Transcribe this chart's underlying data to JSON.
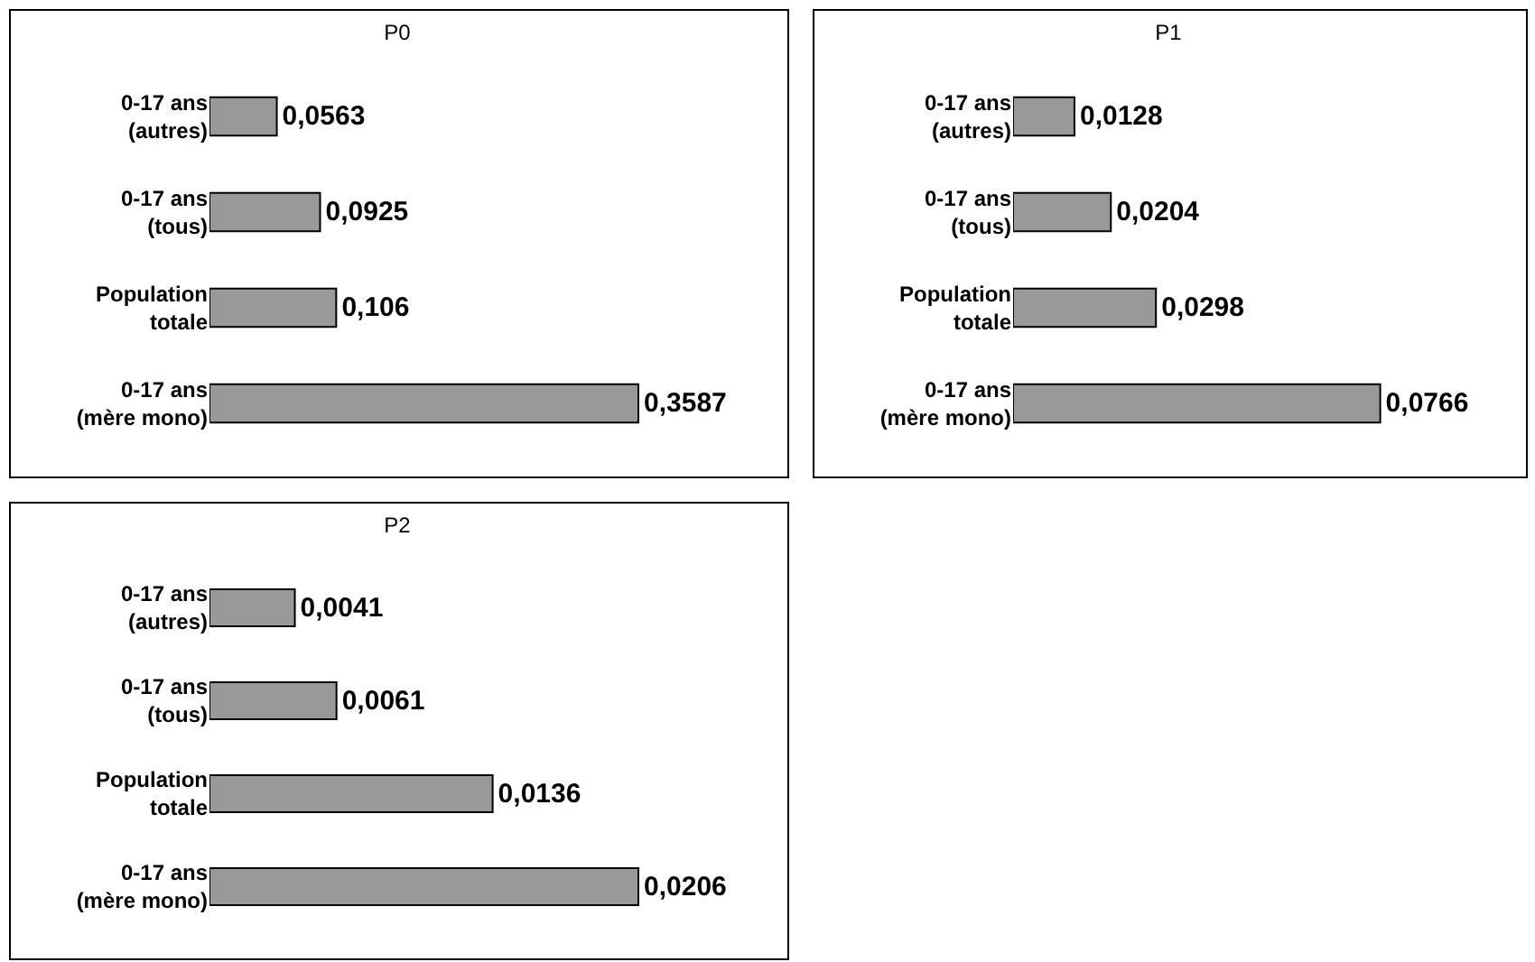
{
  "chart_data": [
    {
      "type": "bar",
      "title": "P0",
      "orientation": "horizontal",
      "categories": [
        "0-17 ans\n(autres)",
        "0-17 ans\n(tous)",
        "Population\ntotale",
        "0-17 ans\n(mère mono)"
      ],
      "values": [
        0.0563,
        0.0925,
        0.106,
        0.3587
      ],
      "value_labels": [
        "0,0563",
        "0,0925",
        "0,106",
        "0,3587"
      ],
      "color": "#999999"
    },
    {
      "type": "bar",
      "title": "P1",
      "orientation": "horizontal",
      "categories": [
        "0-17 ans\n(autres)",
        "0-17 ans\n(tous)",
        "Population\ntotale",
        "0-17 ans\n(mère mono)"
      ],
      "values": [
        0.0128,
        0.0204,
        0.0298,
        0.0766
      ],
      "value_labels": [
        "0,0128",
        "0,0204",
        "0,0298",
        "0,0766"
      ],
      "color": "#999999"
    },
    {
      "type": "bar",
      "title": "P2",
      "orientation": "horizontal",
      "categories": [
        "0-17 ans\n(autres)",
        "0-17 ans\n(tous)",
        "Population\ntotale",
        "0-17 ans\n(mère mono)"
      ],
      "values": [
        0.0041,
        0.0061,
        0.0136,
        0.0206
      ],
      "value_labels": [
        "0,0041",
        "0,0061",
        "0,0136",
        "0,0206"
      ],
      "color": "#999999"
    }
  ]
}
